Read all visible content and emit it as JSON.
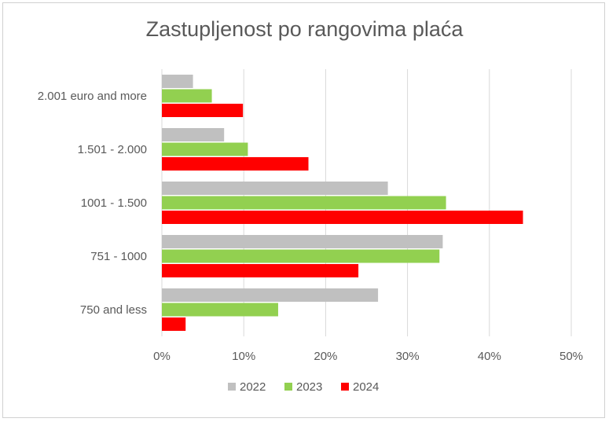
{
  "chart_data": {
    "type": "bar",
    "orientation": "horizontal",
    "title": "Zastupljenost po rangovima plaća",
    "categories": [
      "2.001 euro and more",
      "1.501 - 2.000",
      "1001 - 1.500",
      "751 - 1000",
      "750 and less"
    ],
    "series": [
      {
        "name": "2022",
        "color": "#c0c0c0",
        "values": [
          3.8,
          7.6,
          27.6,
          34.3,
          26.4
        ]
      },
      {
        "name": "2023",
        "color": "#92d050",
        "values": [
          6.1,
          10.5,
          34.7,
          33.9,
          14.2
        ]
      },
      {
        "name": "2024",
        "color": "#ff0000",
        "values": [
          9.9,
          17.9,
          44.1,
          24.0,
          2.9
        ]
      }
    ],
    "xlim": [
      0,
      50
    ],
    "xticks": [
      0,
      10,
      20,
      30,
      40,
      50
    ],
    "tick_format": "%",
    "grid": true,
    "legend_position": "bottom"
  }
}
